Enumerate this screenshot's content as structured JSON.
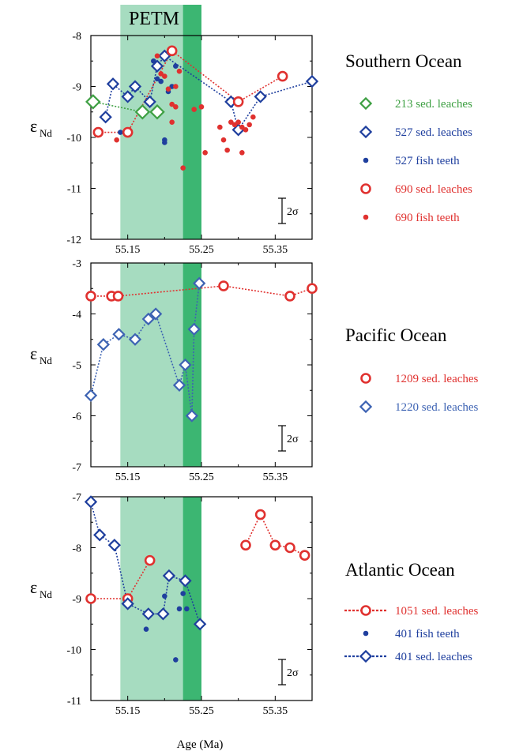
{
  "top_label": "PETM",
  "x_axis_label": "Age (Ma)",
  "shading": {
    "petm_band": [
      55.14,
      55.25
    ],
    "onset_band": [
      55.225,
      55.25
    ]
  },
  "chart_data": [
    {
      "type": "scatter",
      "title": "Southern Ocean",
      "ylabel_main": "ε",
      "ylabel_sub": "Nd",
      "xlim": [
        55.1,
        55.4
      ],
      "ylim": [
        -12,
        -8
      ],
      "x_ticks": [
        "55.15",
        "55.25",
        "55.35"
      ],
      "y_ticks": [
        "-8",
        "-9",
        "-10",
        "-11",
        "-12"
      ],
      "sigma_label": "2σ",
      "series": [
        {
          "name": "213 sed. leaches",
          "color": "#3ea043",
          "marker": "diamond-large",
          "connected": true,
          "x": [
            55.103,
            55.17,
            55.19
          ],
          "y": [
            -9.3,
            -9.5,
            -9.5
          ]
        },
        {
          "name": "527 sed. leaches",
          "color": "#1f3f9e",
          "marker": "diamond",
          "connected": true,
          "x": [
            55.12,
            55.13,
            55.15,
            55.16,
            55.18,
            55.19,
            55.2,
            55.29,
            55.3,
            55.33,
            55.4
          ],
          "y": [
            -9.6,
            -8.95,
            -9.2,
            -9.0,
            -9.3,
            -8.6,
            -8.4,
            -9.3,
            -9.85,
            -9.2,
            -8.9
          ]
        },
        {
          "name": "527 fish teeth",
          "color": "#1f3f9e",
          "marker": "dot",
          "connected": false,
          "x": [
            55.14,
            55.185,
            55.19,
            55.195,
            55.2,
            55.2,
            55.205,
            55.21,
            55.215
          ],
          "y": [
            -9.9,
            -8.5,
            -8.85,
            -8.9,
            -10.05,
            -10.1,
            -9.1,
            -9.0,
            -8.6
          ]
        },
        {
          "name": "690 sed. leaches",
          "color": "#e0312f",
          "marker": "circle",
          "connected": true,
          "x": [
            55.11,
            55.15,
            55.21,
            55.3,
            55.36
          ],
          "y": [
            -9.9,
            -9.9,
            -8.3,
            -9.3,
            -8.8
          ]
        },
        {
          "name": "690 fish teeth",
          "color": "#e0312f",
          "marker": "dot",
          "connected": false,
          "x": [
            55.135,
            55.19,
            55.195,
            55.2,
            55.205,
            55.21,
            55.21,
            55.215,
            55.215,
            55.22,
            55.225,
            55.24,
            55.25,
            55.255,
            55.275,
            55.28,
            55.285,
            55.29,
            55.295,
            55.3,
            55.305,
            55.305,
            55.31,
            55.315,
            55.32
          ],
          "y": [
            -10.05,
            -8.4,
            -8.75,
            -8.8,
            -9.05,
            -9.7,
            -9.35,
            -9.0,
            -9.4,
            -8.7,
            -10.6,
            -9.45,
            -9.4,
            -10.3,
            -9.8,
            -10.05,
            -10.25,
            -9.7,
            -9.75,
            -9.7,
            -9.8,
            -10.3,
            -9.85,
            -9.75,
            -9.6
          ]
        }
      ]
    },
    {
      "type": "scatter",
      "title": "Pacific Ocean",
      "ylabel_main": "ε",
      "ylabel_sub": "Nd",
      "xlim": [
        55.1,
        55.4
      ],
      "ylim": [
        -7,
        -3
      ],
      "x_ticks": [
        "55.15",
        "55.25",
        "55.35"
      ],
      "y_ticks": [
        "-3",
        "-4",
        "-5",
        "-6",
        "-7"
      ],
      "sigma_label": "2σ",
      "series": [
        {
          "name": "1209 sed. leaches",
          "color": "#e0312f",
          "marker": "circle",
          "connected": true,
          "x": [
            55.1,
            55.128,
            55.137,
            55.28,
            55.37,
            55.4
          ],
          "y": [
            -3.65,
            -3.65,
            -3.65,
            -3.45,
            -3.65,
            -3.5
          ]
        },
        {
          "name": "1220 sed. leaches",
          "color": "#3d63b3",
          "marker": "diamond",
          "connected": true,
          "x": [
            55.1,
            55.117,
            55.138,
            55.16,
            55.178,
            55.188,
            55.22,
            55.228,
            55.237,
            55.24,
            55.247
          ],
          "y": [
            -5.6,
            -4.6,
            -4.4,
            -4.5,
            -4.1,
            -4.0,
            -5.4,
            -5.0,
            -6.0,
            -4.3,
            -3.4
          ]
        }
      ]
    },
    {
      "type": "scatter",
      "title": "Atlantic Ocean",
      "ylabel_main": "ε",
      "ylabel_sub": "Nd",
      "xlim": [
        55.1,
        55.4
      ],
      "ylim": [
        -11,
        -7
      ],
      "x_ticks": [
        "55.15",
        "55.25",
        "55.35"
      ],
      "y_ticks": [
        "-7",
        "-8",
        "-9",
        "-10",
        "-11"
      ],
      "sigma_label": "2σ",
      "series": [
        {
          "name": "1051 sed. leaches",
          "color": "#e0312f",
          "marker": "circle",
          "connected": true,
          "x": [
            55.1,
            55.15,
            55.18
          ],
          "y": [
            -9.0,
            -9.0,
            -8.25
          ]
        },
        {
          "name": "1051 sed. leaches (late)",
          "color": "#e0312f",
          "marker": "circle",
          "connected": true,
          "legend": false,
          "x": [
            55.31,
            55.33,
            55.35,
            55.37,
            55.39
          ],
          "y": [
            -7.95,
            -7.35,
            -7.95,
            -8.0,
            -8.15
          ]
        },
        {
          "name": "401 fish teeth",
          "color": "#1f3f9e",
          "marker": "dot",
          "connected": false,
          "x": [
            55.175,
            55.18,
            55.2,
            55.215,
            55.22,
            55.225,
            55.23
          ],
          "y": [
            -9.6,
            -9.3,
            -8.95,
            -10.2,
            -9.2,
            -8.9,
            -9.2
          ]
        },
        {
          "name": "401 sed. leaches",
          "color": "#1f3f9e",
          "marker": "diamond",
          "connected": true,
          "x": [
            55.1,
            55.112,
            55.132,
            55.15,
            55.178,
            55.198,
            55.206,
            55.228,
            55.248
          ],
          "y": [
            -7.1,
            -7.75,
            -7.95,
            -9.1,
            -9.3,
            -9.3,
            -8.55,
            -8.65,
            -9.5
          ]
        }
      ]
    }
  ]
}
